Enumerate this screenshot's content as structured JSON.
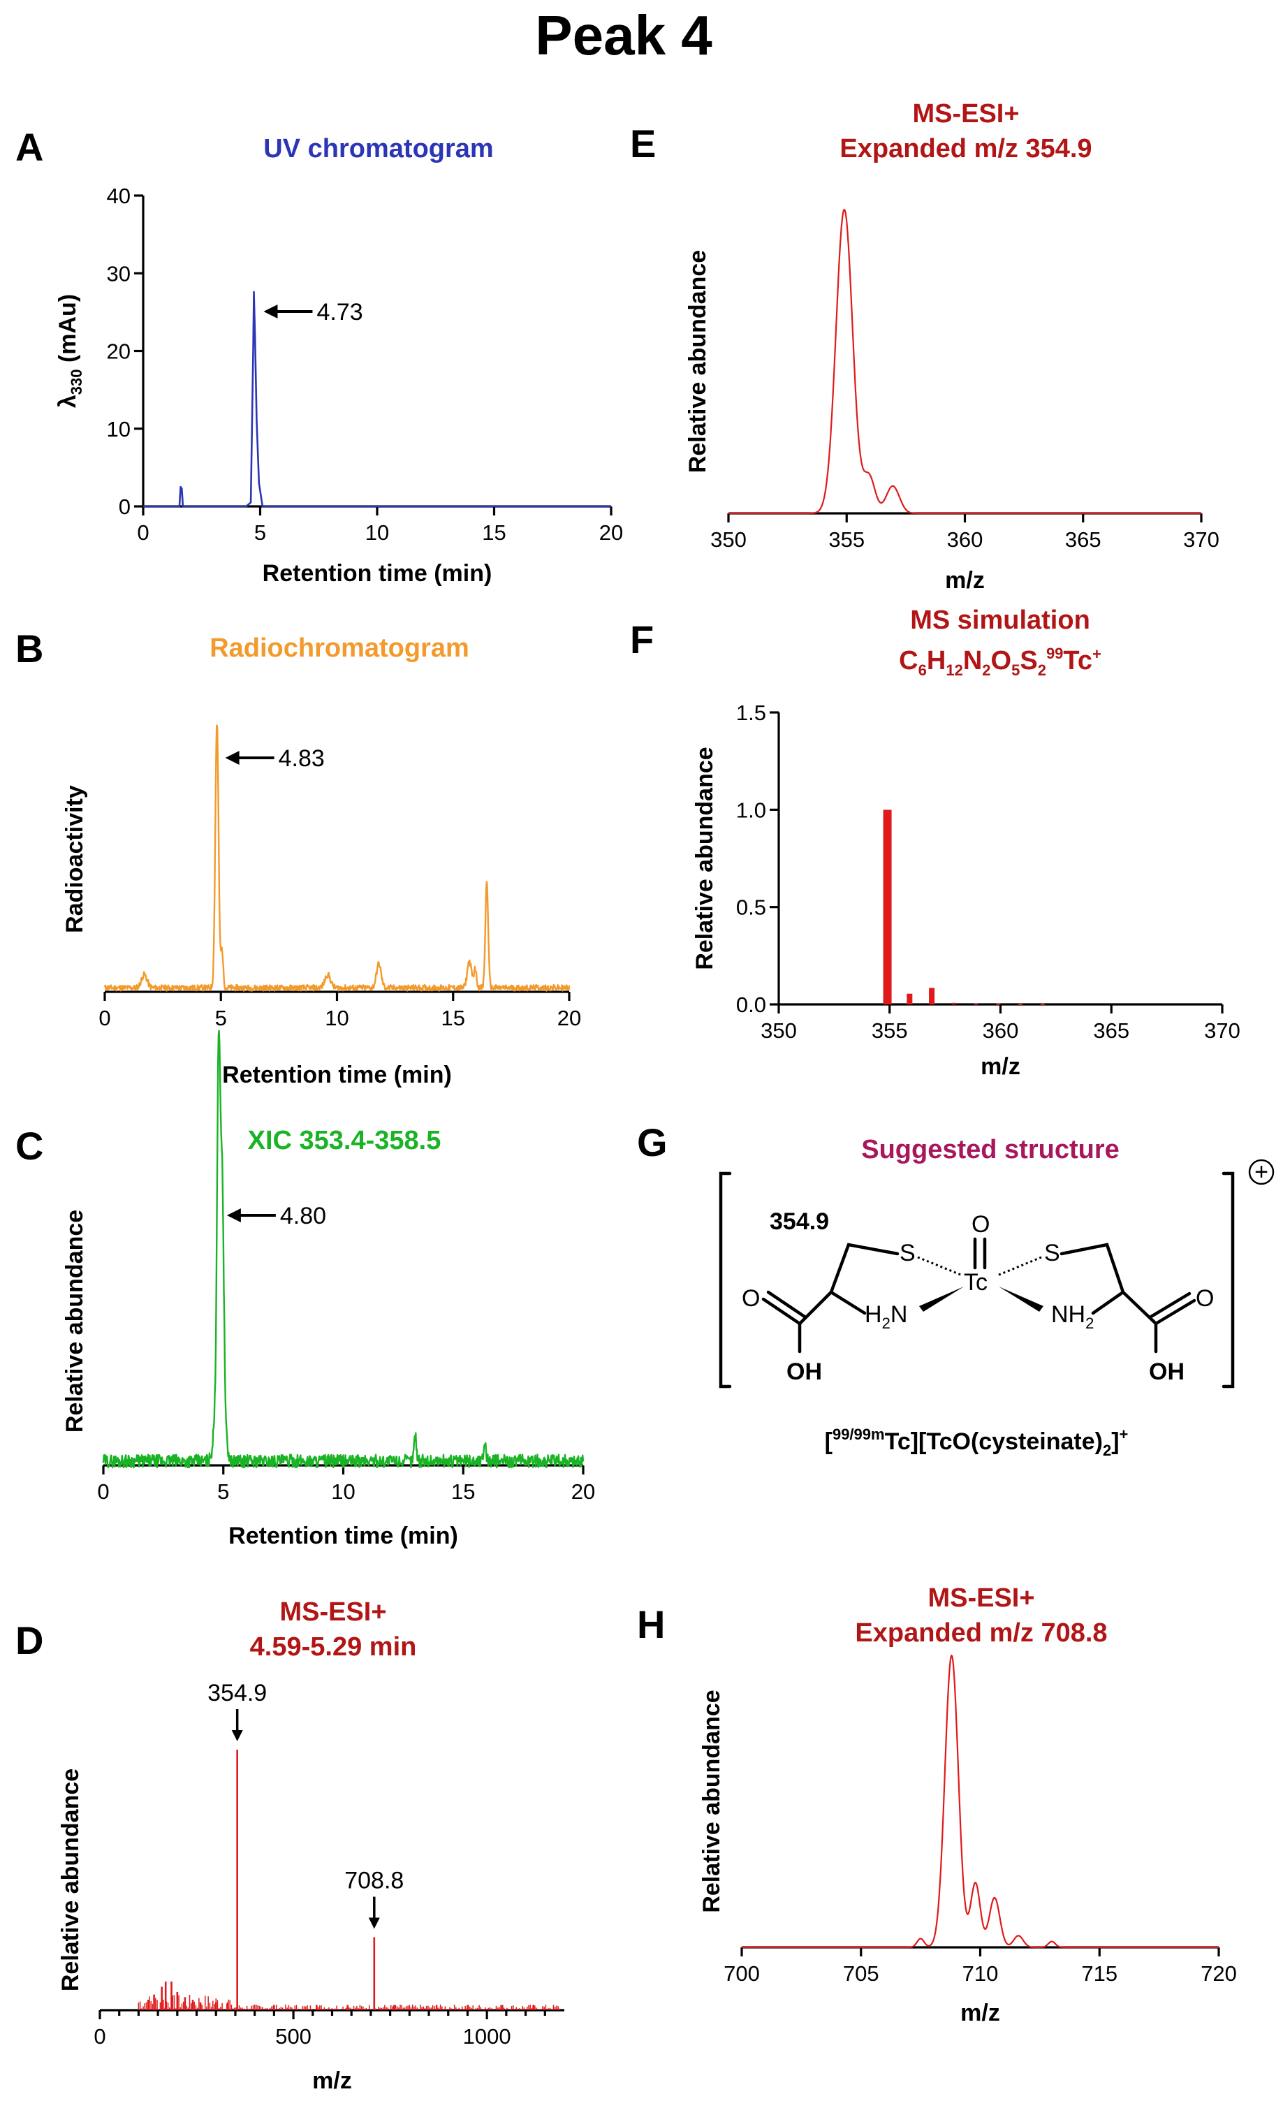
{
  "figure_title": "Peak 4",
  "colors": {
    "uv": "#2b35b5",
    "radio": "#f39a2c",
    "xic": "#19b325",
    "ms": "#e01a1a",
    "dark_red_title": "#b11515",
    "structure_title": "#a8165c"
  },
  "panels": {
    "A": {
      "letter": "A",
      "title": "UV chromatogram",
      "peak_label": "4.73"
    },
    "B": {
      "letter": "B",
      "title": "Radiochromatogram",
      "peak_label": "4.83"
    },
    "C": {
      "letter": "C",
      "title": "XIC 353.4-358.5",
      "peak_label": "4.80"
    },
    "D": {
      "letter": "D",
      "title_line1": "MS-ESI+",
      "title_line2": "4.59-5.29 min",
      "peak1_label": "354.9",
      "peak2_label": "708.8"
    },
    "E": {
      "letter": "E",
      "title_line1": "MS-ESI+",
      "title_line2": "Expanded m/z 354.9"
    },
    "F": {
      "letter": "F",
      "title_line1": "MS simulation"
    },
    "G": {
      "letter": "G",
      "title": "Suggested structure",
      "mass": "354.9"
    },
    "H": {
      "letter": "H",
      "title_line1": "MS-ESI+",
      "title_line2": "Expanded m/z 708.8"
    }
  },
  "structure": {
    "S_left": "S",
    "S_right": "S",
    "Tc": "Tc",
    "O_top": "O",
    "O_left": "O",
    "O_right": "O",
    "OH_left": "OH",
    "OH_right": "OH",
    "H2N_H": "H",
    "H2N_sub": "2",
    "H2N_N": "N",
    "NH2_N": "NH",
    "NH2_sub": "2",
    "charge_symbol": "+",
    "caption_sup": "99/99m",
    "caption_main": "Tc][TcO(cysteinate)",
    "caption_sub": "2",
    "caption_end": "]",
    "caption_charge": "+",
    "caption_open": "["
  },
  "formula": {
    "C": "C",
    "C_n": "6",
    "H": "H",
    "H_n": "12",
    "N": "N",
    "N_n": "2",
    "O": "O",
    "O_n": "5",
    "S": "S",
    "S_n": "2",
    "iso": "99",
    "Tc": "Tc",
    "charge": "+"
  },
  "chart_data": [
    {
      "id": "A",
      "type": "line",
      "title": "UV chromatogram",
      "xlabel": "Retention time (min)",
      "ylabel": {
        "prefix": "λ",
        "sub": "330",
        "suffix": " (mAu)"
      },
      "xlim": [
        0,
        20
      ],
      "ylim": [
        0,
        40
      ],
      "xticks": [
        "0",
        "5",
        "10",
        "15",
        "20"
      ],
      "yticks": [
        "0",
        "10",
        "20",
        "30",
        "40"
      ],
      "series": [
        {
          "x": [
            0,
            1.55,
            1.6,
            1.65,
            1.7,
            4.4,
            4.6,
            4.7,
            4.73,
            4.78,
            4.85,
            4.95,
            5.1,
            12,
            20
          ],
          "y": [
            0,
            0,
            2.5,
            2.3,
            0,
            0,
            0.5,
            20,
            27.6,
            22,
            11,
            3,
            0,
            0,
            0
          ]
        }
      ],
      "annotation": {
        "x": 4.73,
        "label": "4.73"
      }
    },
    {
      "id": "B",
      "type": "line",
      "title": "Radiochromatogram",
      "xlabel": "Retention time (min)",
      "ylabel": "Radioactivity",
      "xlim": [
        0,
        20
      ],
      "ylim": [
        0,
        100
      ],
      "xticks": [
        "0",
        "5",
        "10",
        "15",
        "20"
      ],
      "peaks": [
        [
          1.7,
          5,
          0.12
        ],
        [
          4.83,
          100,
          0.07
        ],
        [
          5.05,
          14,
          0.05
        ],
        [
          9.6,
          5,
          0.12
        ],
        [
          11.8,
          9,
          0.1
        ],
        [
          15.7,
          10,
          0.09
        ],
        [
          15.95,
          7,
          0.06
        ],
        [
          16.45,
          40,
          0.06
        ]
      ],
      "baseline": 1.5,
      "annotation": {
        "x": 4.83,
        "label": "4.83"
      }
    },
    {
      "id": "C",
      "type": "line",
      "title": "XIC 353.4-358.5",
      "xlabel": "Retention time (min)",
      "ylabel": "Relative abundance",
      "xlim": [
        0,
        20
      ],
      "ylim": [
        0,
        100
      ],
      "xticks": [
        "0",
        "5",
        "10",
        "15",
        "20"
      ],
      "peaks": [
        [
          4.8,
          100,
          0.06
        ],
        [
          4.95,
          65,
          0.07
        ],
        [
          4.85,
          45,
          0.15
        ],
        [
          13.0,
          9,
          0.05
        ],
        [
          15.9,
          7,
          0.05
        ]
      ],
      "baseline": 1.5,
      "annotation": {
        "x": 4.8,
        "label": "4.80"
      }
    },
    {
      "id": "D",
      "type": "bar",
      "title": "MS-ESI+ 4.59-5.29 min",
      "xlabel": "m/z",
      "ylabel": "Relative abundance",
      "xlim": [
        0,
        1200
      ],
      "ylim": [
        0,
        100
      ],
      "xticks": [
        "0",
        "500",
        "1000"
      ],
      "x": [
        354.9,
        708.8,
        170,
        185,
        160,
        200,
        140,
        220,
        125,
        240,
        300,
        260,
        330,
        450,
        560,
        640,
        760,
        870,
        950,
        1040,
        1120
      ],
      "values": [
        100,
        28,
        11,
        11,
        9,
        7,
        6,
        5,
        4,
        4,
        3,
        3,
        3,
        2,
        2,
        2,
        2,
        2,
        2,
        2,
        2
      ],
      "annotations": [
        {
          "x": 354.9,
          "label": "354.9"
        },
        {
          "x": 708.8,
          "label": "708.8"
        }
      ]
    },
    {
      "id": "E",
      "type": "line",
      "title": "MS-ESI+ Expanded m/z 354.9",
      "xlabel": "m/z",
      "ylabel": "Relative abundance",
      "xlim": [
        350,
        370
      ],
      "ylim": [
        0,
        100
      ],
      "xticks": [
        "350",
        "355",
        "360",
        "365",
        "370"
      ],
      "peaks": [
        [
          354.9,
          100,
          0.35
        ],
        [
          355.95,
          12,
          0.25
        ],
        [
          356.95,
          9,
          0.28
        ]
      ]
    },
    {
      "id": "F",
      "type": "bar",
      "title": "MS simulation",
      "xlabel": "m/z",
      "ylabel": "Relative abundance",
      "xlim": [
        350,
        370
      ],
      "ylim": [
        0,
        1.5
      ],
      "xticks": [
        "350",
        "355",
        "360",
        "365",
        "370"
      ],
      "yticks": [
        "0.0",
        "0.5",
        "1.0",
        "1.5"
      ],
      "x": [
        354.9,
        355.9,
        356.9,
        357.9,
        358.9,
        359.9,
        360.9,
        361.9
      ],
      "values": [
        1.0,
        0.055,
        0.085,
        0.008,
        0.006,
        0.005,
        0.004,
        0.004
      ]
    },
    {
      "id": "H",
      "type": "line",
      "title": "MS-ESI+ Expanded m/z 708.8",
      "xlabel": "m/z",
      "ylabel": "Relative abundance",
      "xlim": [
        700,
        720
      ],
      "ylim": [
        0,
        100
      ],
      "xticks": [
        "700",
        "705",
        "710",
        "715",
        "720"
      ],
      "peaks": [
        [
          707.5,
          3,
          0.15
        ],
        [
          708.8,
          100,
          0.28
        ],
        [
          709.8,
          22,
          0.2
        ],
        [
          710.6,
          17,
          0.22
        ],
        [
          711.6,
          4,
          0.2
        ],
        [
          713.0,
          2,
          0.15
        ]
      ]
    }
  ]
}
